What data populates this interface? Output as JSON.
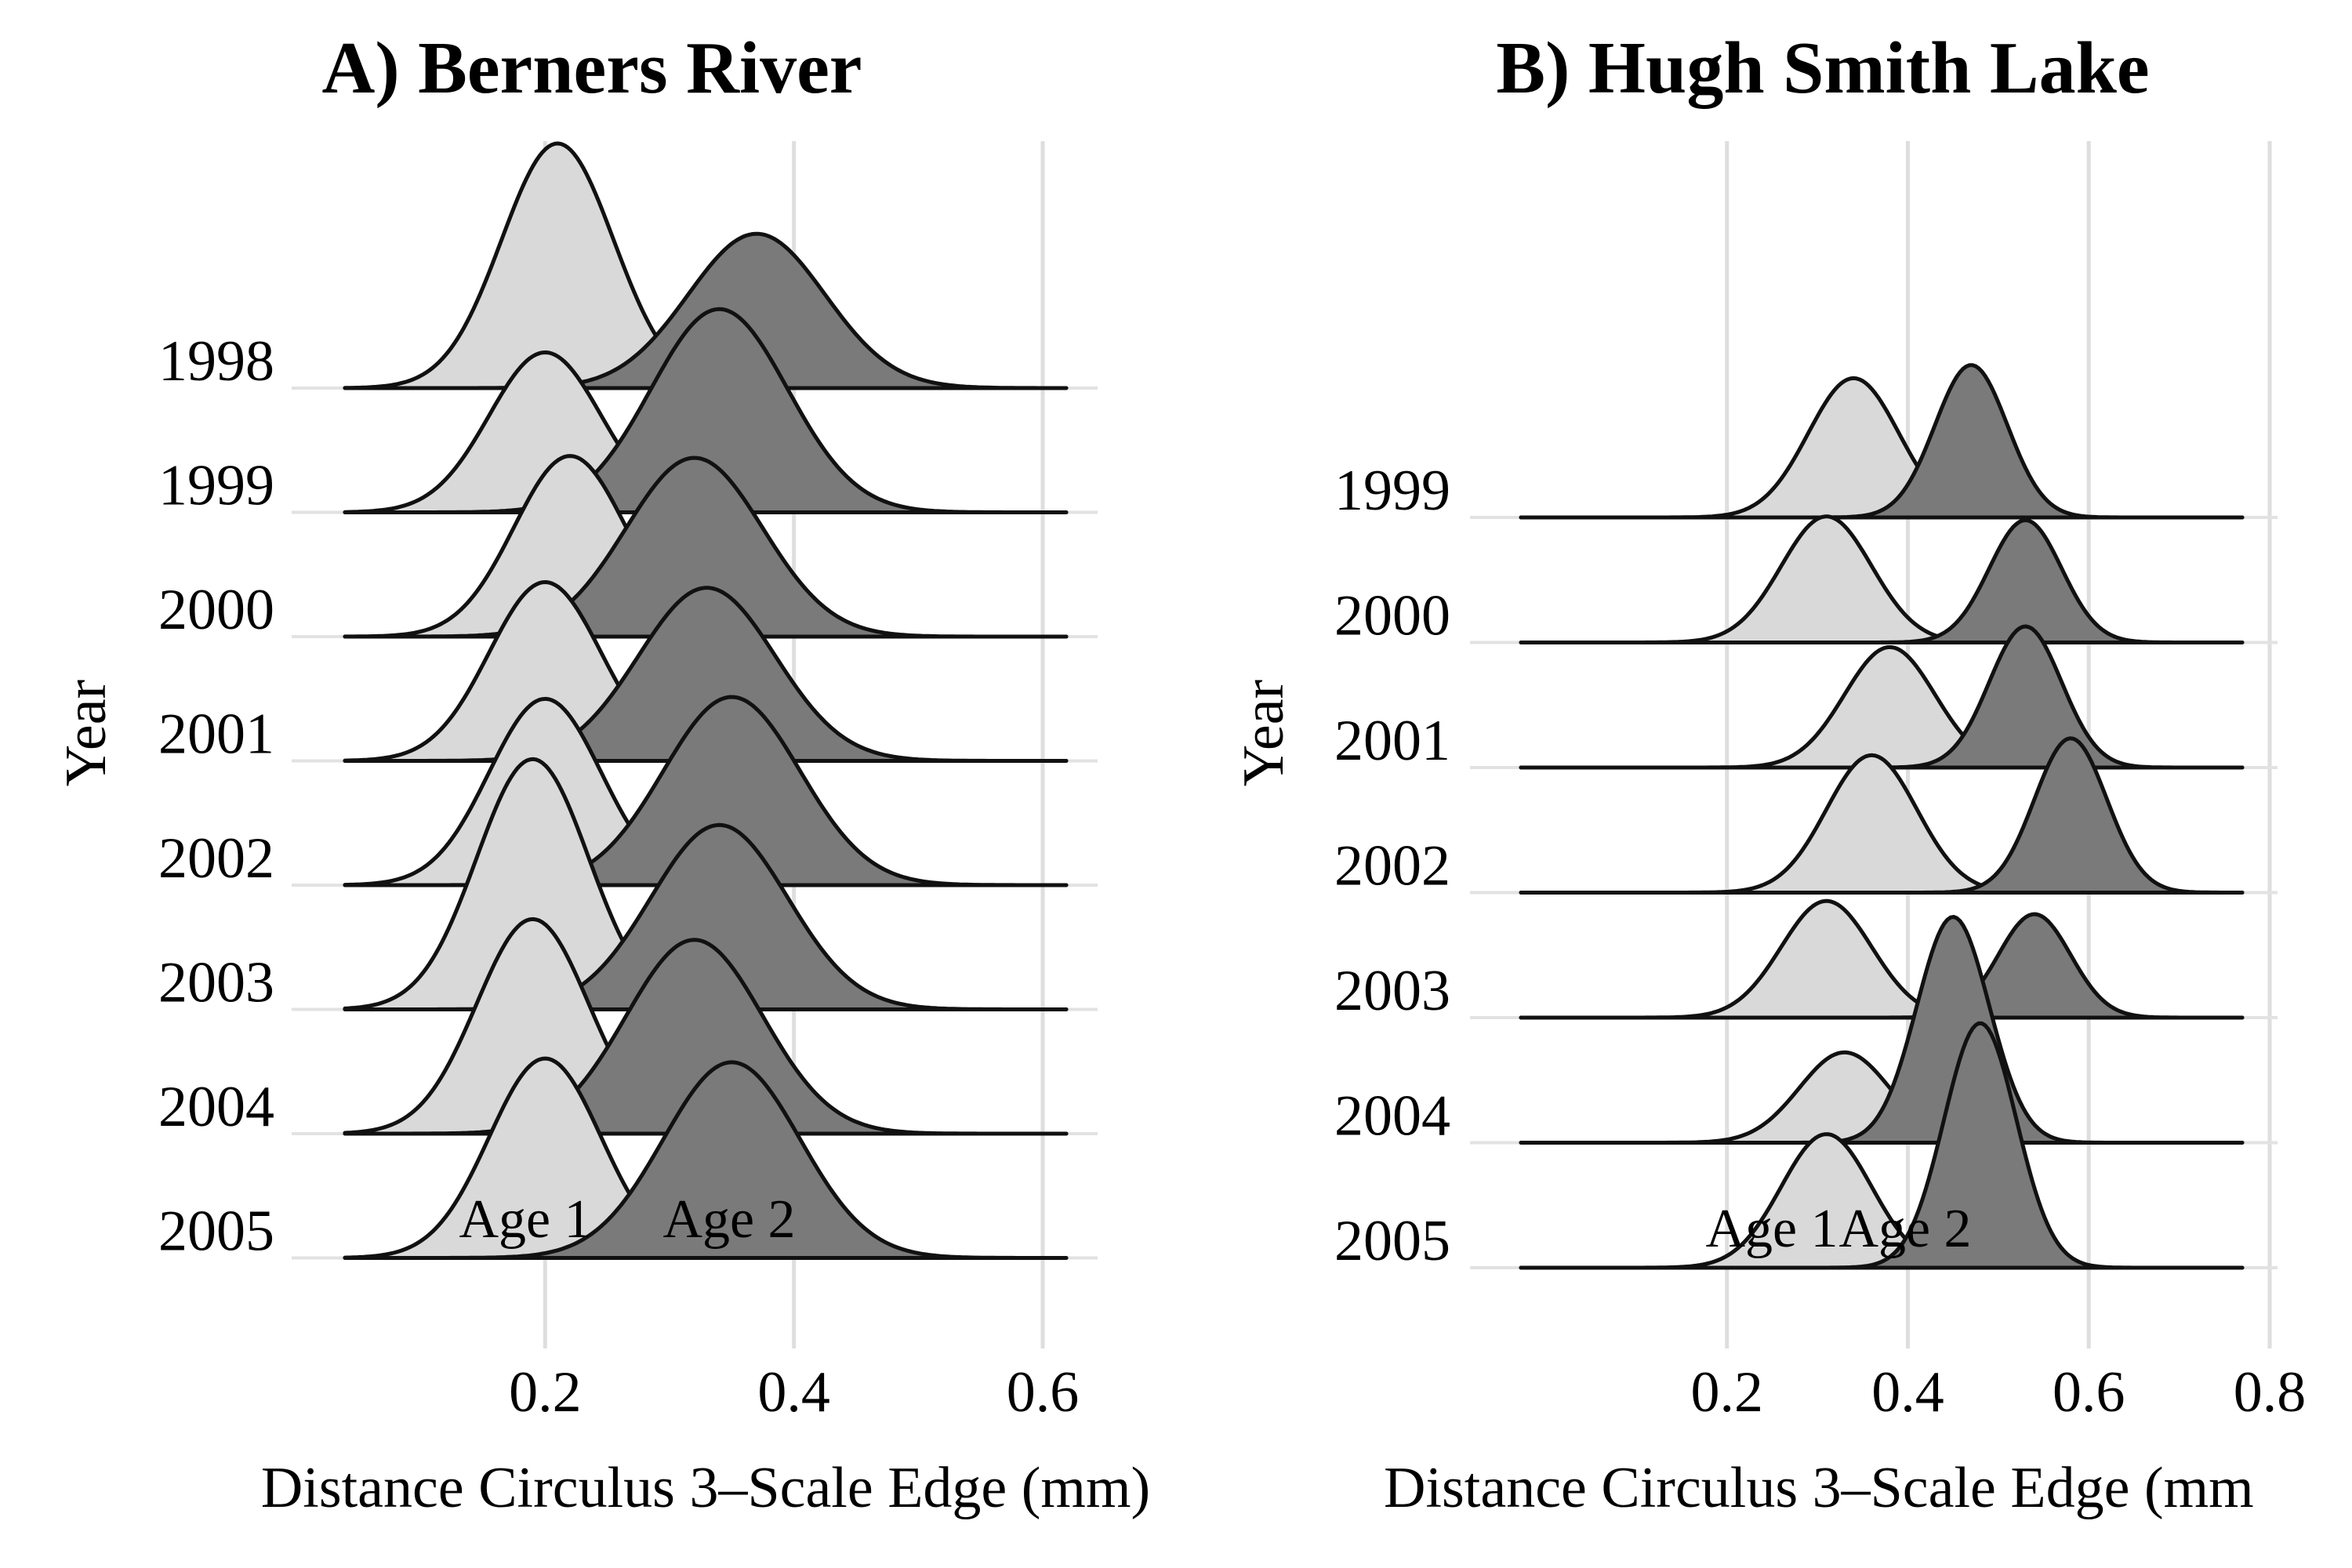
{
  "chart_data": [
    {
      "type": "area",
      "title": "A) Berners River",
      "xlabel": "Distance Circulus 3–Scale Edge (mm)",
      "ylabel": "Year",
      "xlim": [
        0.0,
        0.6
      ],
      "xticks": [
        "0.2",
        "0.4",
        "0.6"
      ],
      "xtick_values": [
        0.2,
        0.4,
        0.6
      ],
      "grid": "vertical",
      "years": [
        "1998",
        "1999",
        "2000",
        "2001",
        "2002",
        "2003",
        "2004",
        "2005"
      ],
      "series": [
        {
          "name": "Age 1",
          "color": "#d9d9d9",
          "peaks": [
            {
              "year": "1998",
              "x": 0.21,
              "relative_height": 1.3
            },
            {
              "year": "1999",
              "x": 0.2,
              "relative_height": 0.85
            },
            {
              "year": "2000",
              "x": 0.22,
              "relative_height": 0.96
            },
            {
              "year": "2001",
              "x": 0.2,
              "relative_height": 0.95
            },
            {
              "year": "2002",
              "x": 0.2,
              "relative_height": 0.99
            },
            {
              "year": "2003",
              "x": 0.19,
              "relative_height": 1.33
            },
            {
              "year": "2004",
              "x": 0.19,
              "relative_height": 1.14
            },
            {
              "year": "2005",
              "x": 0.2,
              "relative_height": 1.06
            }
          ]
        },
        {
          "name": "Age 2",
          "color": "#7a7a7a",
          "peaks": [
            {
              "year": "1998",
              "x": 0.37,
              "relative_height": 0.82
            },
            {
              "year": "1999",
              "x": 0.34,
              "relative_height": 1.08
            },
            {
              "year": "2000",
              "x": 0.32,
              "relative_height": 0.95
            },
            {
              "year": "2001",
              "x": 0.33,
              "relative_height": 0.92
            },
            {
              "year": "2002",
              "x": 0.35,
              "relative_height": 1.0
            },
            {
              "year": "2003",
              "x": 0.34,
              "relative_height": 0.98
            },
            {
              "year": "2004",
              "x": 0.32,
              "relative_height": 1.03
            },
            {
              "year": "2005",
              "x": 0.35,
              "relative_height": 1.04
            }
          ]
        }
      ],
      "annotations": [
        "Age 1",
        "Age 2"
      ]
    },
    {
      "type": "area",
      "title": "B) Hugh Smith Lake",
      "xlabel": "Distance Circulus 3–Scale Edge (mm",
      "ylabel": "Year",
      "xlim": [
        0.0,
        0.8
      ],
      "xticks": [
        "0.2",
        "0.4",
        "0.6",
        "0.8"
      ],
      "xtick_values": [
        0.2,
        0.4,
        0.6,
        0.8
      ],
      "grid": "vertical",
      "years": [
        "1999",
        "2000",
        "2001",
        "2002",
        "2003",
        "2004",
        "2005"
      ],
      "series": [
        {
          "name": "Age 1",
          "color": "#d9d9d9",
          "peaks": [
            {
              "year": "1999",
              "x": 0.34,
              "relative_height": 0.74
            },
            {
              "year": "2000",
              "x": 0.31,
              "relative_height": 0.67
            },
            {
              "year": "2001",
              "x": 0.38,
              "relative_height": 0.64
            },
            {
              "year": "2002",
              "x": 0.36,
              "relative_height": 0.73
            },
            {
              "year": "2003",
              "x": 0.31,
              "relative_height": 0.62
            },
            {
              "year": "2004",
              "x": 0.33,
              "relative_height": 0.48
            },
            {
              "year": "2005",
              "x": 0.31,
              "relative_height": 0.71
            }
          ]
        },
        {
          "name": "Age 2",
          "color": "#7a7a7a",
          "peaks": [
            {
              "year": "1999",
              "x": 0.47,
              "relative_height": 0.81
            },
            {
              "year": "2000",
              "x": 0.53,
              "relative_height": 0.65
            },
            {
              "year": "2001",
              "x": 0.53,
              "relative_height": 0.75
            },
            {
              "year": "2002",
              "x": 0.58,
              "relative_height": 0.82
            },
            {
              "year": "2003",
              "x": 0.54,
              "relative_height": 0.55
            },
            {
              "year": "2004",
              "x": 0.45,
              "relative_height": 1.2
            },
            {
              "year": "2005",
              "x": 0.48,
              "relative_height": 1.3
            }
          ]
        }
      ],
      "annotations": [
        "Age 1",
        "Age 2"
      ]
    }
  ]
}
